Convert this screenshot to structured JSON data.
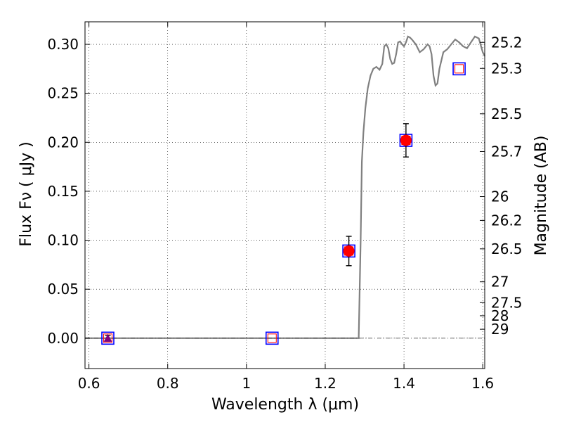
{
  "chart_data": {
    "type": "scatter",
    "xlabel": "Wavelength  λ (μm)",
    "ylabel": "Flux  Fν  ( μJy )",
    "ylabel_right": "Magnitude (AB)",
    "xlim": [
      0.59,
      1.605
    ],
    "ylim": [
      -0.031,
      0.323
    ],
    "grid": true,
    "x_ticks": [
      {
        "value": 0.6,
        "label": "0.6"
      },
      {
        "value": 0.8,
        "label": "0.8"
      },
      {
        "value": 1.0,
        "label": "1"
      },
      {
        "value": 1.2,
        "label": "1.2"
      },
      {
        "value": 1.4,
        "label": "1.4"
      },
      {
        "value": 1.6,
        "label": "1.6"
      }
    ],
    "y_ticks": [
      {
        "value": 0.0,
        "label": "0.00"
      },
      {
        "value": 0.05,
        "label": "0.05"
      },
      {
        "value": 0.1,
        "label": "0.10"
      },
      {
        "value": 0.15,
        "label": "0.15"
      },
      {
        "value": 0.2,
        "label": "0.20"
      },
      {
        "value": 0.25,
        "label": "0.25"
      },
      {
        "value": 0.3,
        "label": "0.30"
      }
    ],
    "mag_ticks": [
      "25.2",
      "25.3",
      "25.5",
      "25.7",
      "26",
      "26.2",
      "26.5",
      "27",
      "27.5",
      "28",
      "29"
    ],
    "model_spectrum": {
      "color": "#808080",
      "x": [
        0.59,
        0.8,
        1.0,
        1.2,
        1.285,
        1.29,
        1.293,
        1.297,
        1.302,
        1.308,
        1.315,
        1.322,
        1.33,
        1.338,
        1.345,
        1.35,
        1.355,
        1.36,
        1.365,
        1.37,
        1.375,
        1.38,
        1.385,
        1.39,
        1.395,
        1.4,
        1.405,
        1.41,
        1.415,
        1.42,
        1.43,
        1.44,
        1.45,
        1.46,
        1.465,
        1.47,
        1.475,
        1.48,
        1.485,
        1.49,
        1.5,
        1.51,
        1.52,
        1.53,
        1.54,
        1.55,
        1.56,
        1.57,
        1.58,
        1.59,
        1.6,
        1.605
      ],
      "y": [
        0.0,
        0.0,
        0.0,
        0.0,
        0.0,
        0.1,
        0.18,
        0.21,
        0.235,
        0.255,
        0.268,
        0.275,
        0.277,
        0.274,
        0.28,
        0.298,
        0.3,
        0.296,
        0.285,
        0.28,
        0.281,
        0.29,
        0.302,
        0.303,
        0.3,
        0.298,
        0.302,
        0.308,
        0.307,
        0.305,
        0.3,
        0.292,
        0.295,
        0.3,
        0.298,
        0.29,
        0.268,
        0.258,
        0.26,
        0.275,
        0.292,
        0.295,
        0.3,
        0.305,
        0.302,
        0.298,
        0.296,
        0.302,
        0.308,
        0.306,
        0.292,
        0.288
      ]
    },
    "observed": {
      "color": "#ff0000",
      "points": [
        {
          "x": 0.648,
          "y": 0.0,
          "err": 0.003
        },
        {
          "x": 1.26,
          "y": 0.089,
          "err": 0.015
        },
        {
          "x": 1.405,
          "y": 0.202,
          "err": 0.017
        }
      ]
    },
    "upper_limit": {
      "color": "#800080",
      "x": 0.648,
      "y": 0.0
    },
    "model_photometry": {
      "edge_color": "#0000ff",
      "inner_color": "#ff0000",
      "points": [
        {
          "x": 0.648,
          "y": 0.0
        },
        {
          "x": 1.065,
          "y": 0.0
        },
        {
          "x": 1.26,
          "y": 0.089
        },
        {
          "x": 1.405,
          "y": 0.202
        },
        {
          "x": 1.54,
          "y": 0.275
        }
      ]
    }
  }
}
